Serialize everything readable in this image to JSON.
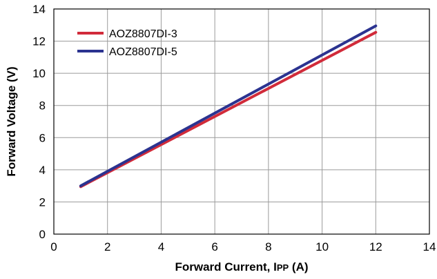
{
  "chart_data": {
    "type": "line",
    "title": "",
    "xlabel": "Forward Current, I",
    "xlabel_sub": "PP",
    "xlabel_unit": " (A)",
    "ylabel": "Forward Voltage (V)",
    "xlim": [
      0,
      14
    ],
    "ylim": [
      0,
      14
    ],
    "xticks": [
      "0",
      "2",
      "4",
      "6",
      "8",
      "10",
      "12",
      "14"
    ],
    "yticks": [
      "0",
      "2",
      "4",
      "6",
      "8",
      "10",
      "12",
      "14"
    ],
    "grid": true,
    "legend_position": "top-left",
    "series": [
      {
        "name": "AOZ8807DI-3",
        "color": "#d12b3a",
        "x": [
          1,
          12
        ],
        "y": [
          2.95,
          12.55
        ]
      },
      {
        "name": "AOZ8807DI-5",
        "color": "#2b3390",
        "x": [
          1,
          12
        ],
        "y": [
          3.0,
          12.95
        ]
      }
    ]
  }
}
